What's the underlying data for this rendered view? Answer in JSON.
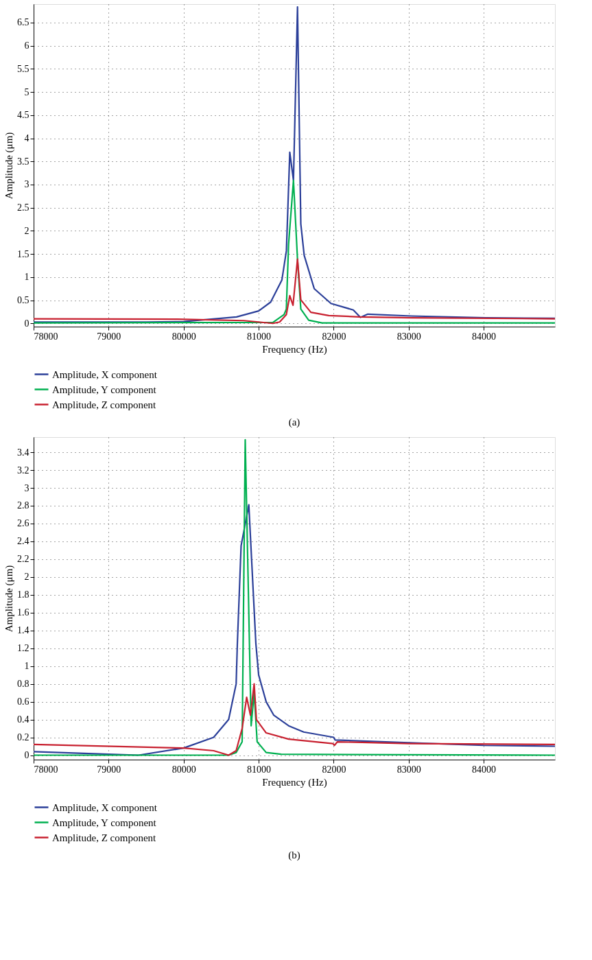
{
  "chart_data": [
    {
      "type": "line",
      "xlabel": "Frequency (Hz)",
      "ylabel": "Amplitude (μm)",
      "xlim": [
        78000,
        84950
      ],
      "ylim": [
        -0.07,
        6.9
      ],
      "xticks": [
        78000,
        79000,
        80000,
        81000,
        82000,
        83000,
        84000
      ],
      "yticks": [
        0,
        0.5,
        1,
        1.5,
        2,
        2.5,
        3,
        3.5,
        4,
        4.5,
        5,
        5.5,
        6,
        6.5
      ],
      "grid": true,
      "legend": "bottom",
      "annotations": [
        "(a)"
      ],
      "series": [
        {
          "name": "Amplitude, X component",
          "color": "#2b3f99",
          "x": [
            78000,
            79500,
            80000,
            80705,
            81000,
            81160,
            81310,
            81370,
            81415,
            81464,
            81518,
            81562,
            81607,
            81741,
            81964,
            82262,
            82357,
            82455,
            83036,
            84027,
            84950
          ],
          "values": [
            0.03,
            0.03,
            0.04,
            0.14,
            0.27,
            0.46,
            0.94,
            1.57,
            3.7,
            3.09,
            6.84,
            2.15,
            1.47,
            0.75,
            0.43,
            0.29,
            0.13,
            0.2,
            0.16,
            0.12,
            0.11
          ]
        },
        {
          "name": "Amplitude, Y component",
          "color": "#00b050",
          "x": [
            78000,
            81190,
            81339,
            81369,
            81399,
            81464,
            81518,
            81562,
            81667,
            81845,
            84950
          ],
          "values": [
            0.01,
            0.02,
            0.19,
            0.31,
            1.71,
            3.09,
            1.38,
            0.31,
            0.07,
            0.01,
            0.01
          ]
        },
        {
          "name": "Amplitude, Z component",
          "color": "#c8202f",
          "x": [
            78000,
            79920,
            80804,
            81190,
            81280,
            81369,
            81415,
            81458,
            81518,
            81562,
            81696,
            81934,
            82351,
            83036,
            84950
          ],
          "values": [
            0.1,
            0.09,
            0.06,
            0.0,
            0.03,
            0.19,
            0.6,
            0.39,
            1.39,
            0.51,
            0.24,
            0.17,
            0.14,
            0.12,
            0.1
          ]
        }
      ]
    },
    {
      "type": "line",
      "xlabel": "Frequency (Hz)",
      "ylabel": "Amplitude (μm)",
      "xlim": [
        78000,
        84950
      ],
      "ylim": [
        -0.05,
        3.57
      ],
      "xticks": [
        78000,
        79000,
        80000,
        81000,
        82000,
        83000,
        84000
      ],
      "yticks": [
        0,
        0.2,
        0.4,
        0.6,
        0.8,
        1,
        1.2,
        1.4,
        1.6,
        1.8,
        2,
        2.2,
        2.4,
        2.6,
        2.8,
        3,
        3.2,
        3.4
      ],
      "grid": true,
      "legend": "bottom",
      "annotations": [
        "(b)"
      ],
      "series": [
        {
          "name": "Amplitude, X component",
          "color": "#2b3f99",
          "x": [
            78000,
            79000,
            79400,
            80000,
            80400,
            80600,
            80700,
            80716,
            80766,
            80869,
            80963,
            81000,
            81100,
            81200,
            81400,
            81600,
            82000,
            82020,
            83000,
            84000,
            84950
          ],
          "values": [
            0.04,
            0.01,
            0.0,
            0.08,
            0.2,
            0.4,
            0.8,
            1.25,
            2.35,
            2.81,
            1.25,
            0.9,
            0.6,
            0.45,
            0.33,
            0.26,
            0.2,
            0.17,
            0.14,
            0.11,
            0.1
          ]
        },
        {
          "name": "Amplitude, Y component",
          "color": "#00b050",
          "x": [
            78000,
            80600,
            80700,
            80780,
            80821,
            80900,
            80940,
            80980,
            81100,
            81300,
            84950
          ],
          "values": [
            0.0,
            0.0,
            0.03,
            0.15,
            3.54,
            0.33,
            0.7,
            0.15,
            0.03,
            0.01,
            0.0
          ]
        },
        {
          "name": "Amplitude, Z component",
          "color": "#c8202f",
          "x": [
            78000,
            80000,
            80400,
            80600,
            80700,
            80780,
            80840,
            80890,
            80940,
            80970,
            81100,
            81400,
            81990,
            82010,
            82050,
            83000,
            84950
          ],
          "values": [
            0.12,
            0.08,
            0.05,
            0.0,
            0.05,
            0.3,
            0.65,
            0.45,
            0.8,
            0.4,
            0.25,
            0.18,
            0.13,
            0.11,
            0.15,
            0.13,
            0.12
          ]
        }
      ]
    }
  ]
}
